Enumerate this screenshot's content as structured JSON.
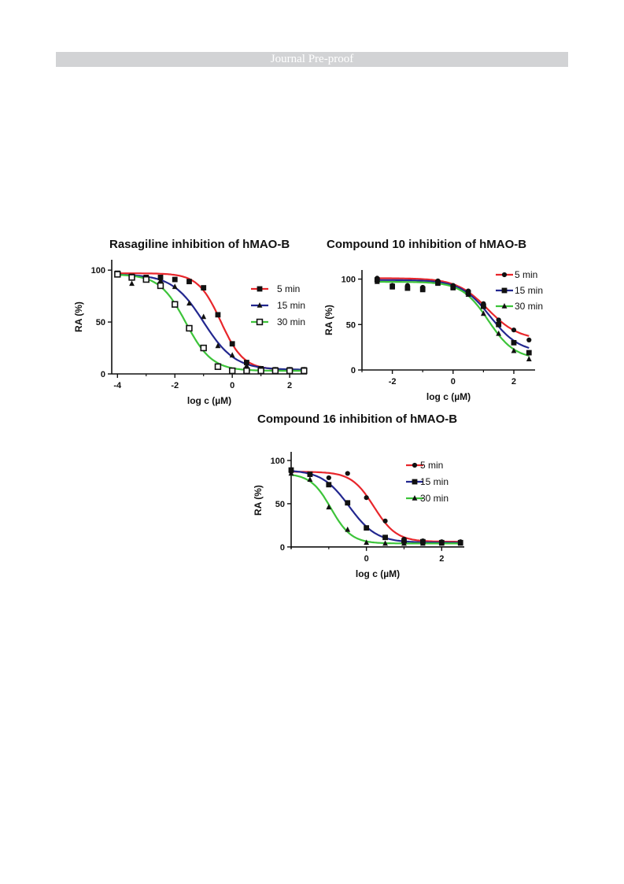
{
  "header": {
    "banner_text": "Journal Pre-proof"
  },
  "chart_data": [
    {
      "type": "line",
      "title": "Rasagiline inhibition of hMAO-B",
      "xlabel": "log c (µM)",
      "ylabel": "RA (%)",
      "xlim": [
        -4.2,
        2.6
      ],
      "ylim": [
        0,
        110
      ],
      "xticks": [
        -4,
        -2,
        0,
        2
      ],
      "yticks": [
        0,
        50,
        100
      ],
      "legend": "top-right",
      "series": [
        {
          "name": "5 min",
          "color": "#e8262b",
          "marker": "square",
          "x": [
            -4,
            -3.5,
            -3,
            -2.5,
            -2,
            -1.5,
            -1,
            -0.5,
            0,
            0.5,
            1,
            1.5,
            2,
            2.5
          ],
          "y": [
            97,
            94,
            93,
            93,
            91,
            89,
            83,
            57,
            29,
            11,
            5,
            4,
            4,
            4
          ]
        },
        {
          "name": "15 min",
          "color": "#22278f",
          "marker": "triangle",
          "x": [
            -4,
            -3.5,
            -3,
            -2.5,
            -2,
            -1.5,
            -1,
            -0.5,
            0,
            0.5,
            1,
            1.5,
            2,
            2.5
          ],
          "y": [
            96,
            87,
            92,
            90,
            84,
            68,
            55,
            27,
            18,
            8,
            5,
            4,
            4,
            4
          ]
        },
        {
          "name": "30 min",
          "color": "#3dc43a",
          "marker": "open-square",
          "x": [
            -4,
            -3.5,
            -3,
            -2.5,
            -2,
            -1.5,
            -1,
            -0.5,
            0,
            0.5,
            1,
            1.5,
            2,
            2.5
          ],
          "y": [
            96,
            93,
            91,
            85,
            67,
            44,
            25,
            7,
            3,
            3,
            3,
            3,
            3,
            3
          ]
        }
      ]
    },
    {
      "type": "line",
      "title": "Compound 10 inhibition of hMAO-B",
      "xlabel": "log c (µM)",
      "ylabel": "RA (%)",
      "xlim": [
        -3,
        2.7
      ],
      "ylim": [
        0,
        110
      ],
      "xticks": [
        -2,
        0,
        2
      ],
      "yticks": [
        0,
        50,
        100
      ],
      "legend": "top-right",
      "series": [
        {
          "name": "5 min",
          "color": "#e8262b",
          "marker": "circle",
          "x": [
            -2.5,
            -2,
            -1.5,
            -1,
            -0.5,
            0,
            0.5,
            1,
            1.5,
            2,
            2.5
          ],
          "y": [
            101,
            93,
            93,
            91,
            98,
            93,
            87,
            73,
            55,
            44,
            33
          ]
        },
        {
          "name": "15 min",
          "color": "#22278f",
          "marker": "square",
          "x": [
            -2.5,
            -2,
            -1.5,
            -1,
            -0.5,
            0,
            0.5,
            1,
            1.5,
            2,
            2.5
          ],
          "y": [
            99,
            92,
            90,
            89,
            96,
            91,
            85,
            70,
            50,
            30,
            19
          ]
        },
        {
          "name": "30 min",
          "color": "#3dc43a",
          "marker": "triangle",
          "x": [
            -2.5,
            -2,
            -1.5,
            -1,
            -0.5,
            0,
            0.5,
            1,
            1.5,
            2,
            2.5
          ],
          "y": [
            97,
            91,
            92,
            88,
            95,
            90,
            83,
            62,
            40,
            21,
            12
          ]
        }
      ]
    },
    {
      "type": "line",
      "title": "Compound 16 inhibition of hMAO-B",
      "xlabel": "log c (µM)",
      "ylabel": "RA (%)",
      "xlim": [
        -2,
        2.6
      ],
      "ylim": [
        -2,
        110
      ],
      "xticks": [
        0,
        2
      ],
      "yticks": [
        0,
        50,
        100
      ],
      "legend": "top-right",
      "series": [
        {
          "name": "5 min",
          "color": "#e8262b",
          "marker": "circle",
          "x": [
            -2,
            -1.5,
            -1,
            -0.5,
            0,
            0.5,
            1,
            1.5,
            2,
            2.5
          ],
          "y": [
            87,
            84,
            80,
            85,
            57,
            30,
            9,
            7,
            6,
            6
          ]
        },
        {
          "name": "15 min",
          "color": "#22278f",
          "marker": "square",
          "x": [
            -2,
            -1.5,
            -1,
            -0.5,
            0,
            0.5,
            1,
            1.5,
            2,
            2.5
          ],
          "y": [
            89,
            84,
            72,
            51,
            22,
            11,
            7,
            6,
            5,
            5
          ]
        },
        {
          "name": "30 min",
          "color": "#3dc43a",
          "marker": "triangle",
          "x": [
            -2,
            -1.5,
            -1,
            -0.5,
            0,
            0.5,
            1,
            1.5,
            2,
            2.5
          ],
          "y": [
            85,
            78,
            46,
            20,
            5,
            4,
            4,
            4,
            4,
            4
          ]
        }
      ]
    }
  ]
}
